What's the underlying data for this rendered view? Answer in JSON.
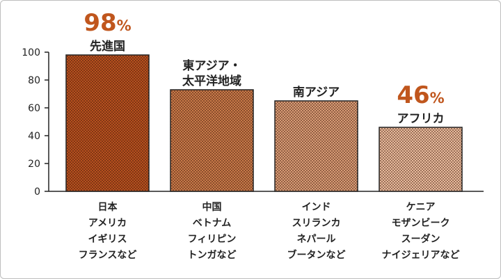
{
  "chart_data": {
    "type": "bar",
    "categories": [
      "先進国",
      "東アジア・太平洋地域",
      "南アジア",
      "アフリカ"
    ],
    "category_label_lines": [
      [
        "先進国"
      ],
      [
        "東アジア・",
        "太平洋地域"
      ],
      [
        "南アジア"
      ],
      [
        "アフリカ"
      ]
    ],
    "values": [
      98,
      73,
      65,
      46
    ],
    "ylim": [
      0,
      100
    ],
    "yticks": [
      0,
      20,
      40,
      60,
      80,
      100
    ],
    "bar_colors": [
      "#b8501e",
      "#c97a49",
      "#d99c76",
      "#e9bb9d"
    ],
    "pattern": "dotted",
    "examples": [
      [
        "日本",
        "アメリカ",
        "イギリス",
        "フランスなど"
      ],
      [
        "中国",
        "ベトナム",
        "フィリピン",
        "トンガなど"
      ],
      [
        "インド",
        "スリランカ",
        "ネパール",
        "ブータンなど"
      ],
      [
        "ケニア",
        "モザンビーク",
        "スーダン",
        "ナイジェリアなど"
      ]
    ],
    "annotations": [
      {
        "category_index": 0,
        "number": "98",
        "unit": "%"
      },
      {
        "category_index": 3,
        "number": "46",
        "unit": "%"
      }
    ],
    "annotation_color": "#c0561d",
    "grid": false,
    "title": "",
    "xlabel": "",
    "ylabel": ""
  }
}
